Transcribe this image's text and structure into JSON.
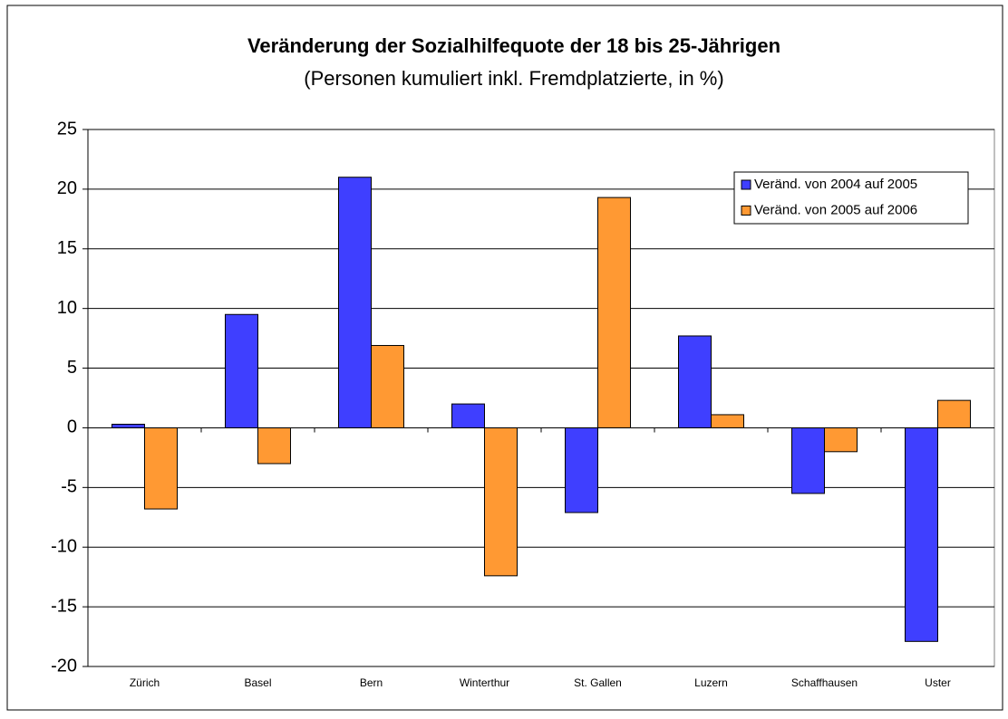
{
  "chart_data": {
    "type": "bar",
    "title": "Veränderung der Sozialhilfequote der 18 bis 25-Jährigen",
    "subtitle": "(Personen kumuliert inkl. Fremdplatzierte, in %)",
    "categories": [
      "Zürich",
      "Basel",
      "Bern",
      "Winterthur",
      "St. Gallen",
      "Luzern",
      "Schaffhausen",
      "Uster"
    ],
    "series": [
      {
        "name": "Veränd. von 2004 auf 2005",
        "color": "#3f3fff",
        "values": [
          0.3,
          9.5,
          21.0,
          2.0,
          -7.1,
          7.7,
          -5.5,
          -17.9
        ]
      },
      {
        "name": "Veränd. von 2005 auf 2006",
        "color": "#ff9933",
        "values": [
          -6.8,
          -3.0,
          6.9,
          -12.4,
          19.3,
          1.1,
          -2.0,
          2.3
        ]
      }
    ],
    "ylim": [
      -20,
      25
    ],
    "yticks": [
      -20,
      -15,
      -10,
      -5,
      0,
      5,
      10,
      15,
      20,
      25
    ],
    "grid": true,
    "legend": "upper right"
  }
}
